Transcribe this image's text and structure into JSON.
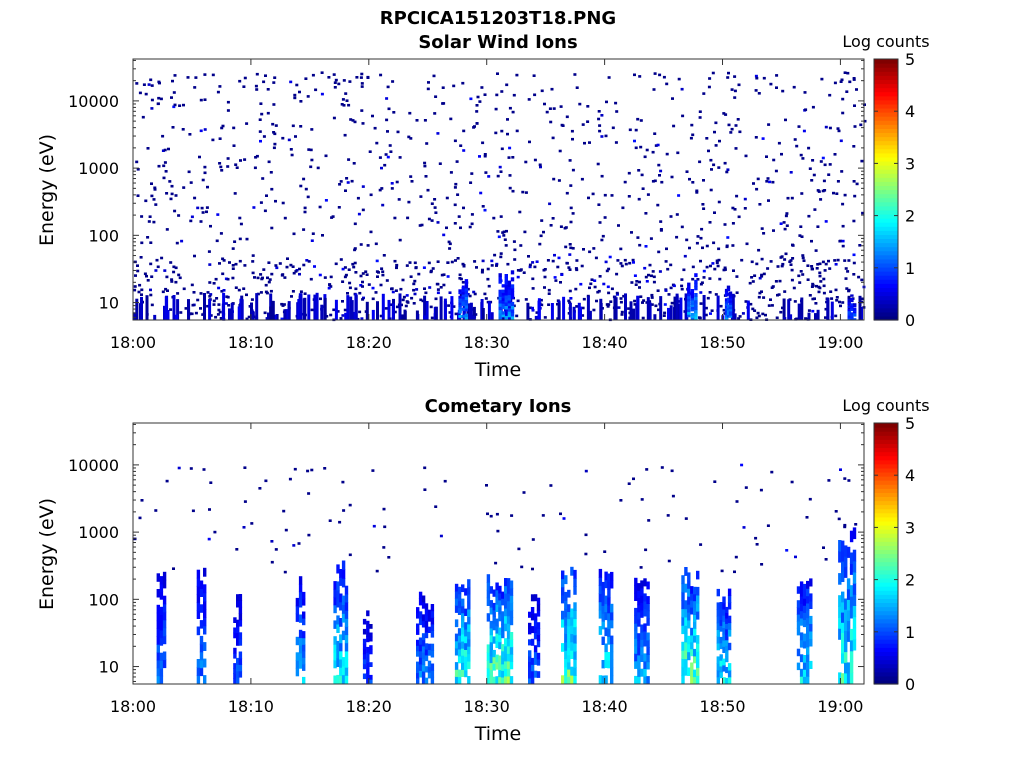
{
  "figure": {
    "title": "RPCICA151203T18.PNG"
  },
  "colorbar": {
    "label": "Log counts",
    "ticks": [
      0,
      1,
      2,
      3,
      4,
      5
    ],
    "colormap": "jet",
    "min": 0,
    "max": 5
  },
  "chart_data": [
    {
      "type": "heatmap",
      "title": "Solar Wind Ions",
      "xlabel": "Time",
      "ylabel": "Energy (eV)",
      "x_ticks": [
        "18:00",
        "18:10",
        "18:20",
        "18:30",
        "18:40",
        "18:50",
        "19:00"
      ],
      "x_tick_minutes": [
        0,
        10,
        20,
        30,
        40,
        50,
        60
      ],
      "xlim_minutes": [
        0,
        62
      ],
      "y_scale": "log",
      "y_ticks": [
        10,
        100,
        1000,
        10000
      ],
      "y_tick_labels": [
        "10",
        "100",
        "1000",
        "10000"
      ],
      "ylim": [
        5.5,
        42000
      ],
      "colorbar_label": "Log counts",
      "clim": [
        0,
        5
      ],
      "background": "#ffffff",
      "description": "sparse single counts (log ~0) spread across all energies 6 eV to 30 keV; bursts below 30 eV near 18:28, 18:31-18:32, 18:47",
      "bursts": [
        {
          "t_start_minutes": 27.6,
          "t_end_minutes": 28.4,
          "e_max_eV": 25,
          "log_max": 1.8
        },
        {
          "t_start_minutes": 31.0,
          "t_end_minutes": 32.3,
          "e_max_eV": 30,
          "log_max": 1.6
        },
        {
          "t_start_minutes": 47.0,
          "t_end_minutes": 47.9,
          "e_max_eV": 30,
          "log_max": 1.8
        },
        {
          "t_start_minutes": 50.2,
          "t_end_minutes": 50.7,
          "e_max_eV": 18,
          "log_max": 1.5
        },
        {
          "t_start_minutes": 60.6,
          "t_end_minutes": 61.3,
          "e_max_eV": 18,
          "log_max": 1.4
        }
      ]
    },
    {
      "type": "heatmap",
      "title": "Cometary Ions",
      "xlabel": "Time",
      "ylabel": "Energy (eV)",
      "x_ticks": [
        "18:00",
        "18:10",
        "18:20",
        "18:30",
        "18:40",
        "18:50",
        "19:00"
      ],
      "x_tick_minutes": [
        0,
        10,
        20,
        30,
        40,
        50,
        60
      ],
      "xlim_minutes": [
        0,
        62
      ],
      "y_scale": "log",
      "y_ticks": [
        10,
        100,
        1000,
        10000
      ],
      "y_tick_labels": [
        "10",
        "100",
        "1000",
        "10000"
      ],
      "ylim": [
        5.5,
        42000
      ],
      "colorbar_label": "Log counts",
      "clim": [
        0,
        5
      ],
      "background": "#ffffff",
      "description": "repeated bursts of ions extending from ~6 eV up to a few hundred eV, sparse counts above 1 keV",
      "bursts": [
        {
          "t_start_minutes": 2.0,
          "t_end_minutes": 2.8,
          "e_max_eV": 300,
          "log_max": 1.5
        },
        {
          "t_start_minutes": 5.4,
          "t_end_minutes": 6.2,
          "e_max_eV": 400,
          "log_max": 1.6
        },
        {
          "t_start_minutes": 8.5,
          "t_end_minutes": 9.2,
          "e_max_eV": 120,
          "log_max": 1.3
        },
        {
          "t_start_minutes": 13.8,
          "t_end_minutes": 14.6,
          "e_max_eV": 250,
          "log_max": 1.8
        },
        {
          "t_start_minutes": 17.0,
          "t_end_minutes": 18.2,
          "e_max_eV": 400,
          "log_max": 2.3
        },
        {
          "t_start_minutes": 19.5,
          "t_end_minutes": 20.3,
          "e_max_eV": 80,
          "log_max": 1.2
        },
        {
          "t_start_minutes": 24.0,
          "t_end_minutes": 25.5,
          "e_max_eV": 150,
          "log_max": 1.6
        },
        {
          "t_start_minutes": 27.3,
          "t_end_minutes": 28.6,
          "e_max_eV": 200,
          "log_max": 2.6
        },
        {
          "t_start_minutes": 30.0,
          "t_end_minutes": 32.2,
          "e_max_eV": 250,
          "log_max": 2.9
        },
        {
          "t_start_minutes": 33.5,
          "t_end_minutes": 34.5,
          "e_max_eV": 150,
          "log_max": 1.4
        },
        {
          "t_start_minutes": 36.3,
          "t_end_minutes": 37.6,
          "e_max_eV": 300,
          "log_max": 2.8
        },
        {
          "t_start_minutes": 39.5,
          "t_end_minutes": 40.7,
          "e_max_eV": 300,
          "log_max": 2.2
        },
        {
          "t_start_minutes": 42.5,
          "t_end_minutes": 43.8,
          "e_max_eV": 300,
          "log_max": 1.8
        },
        {
          "t_start_minutes": 46.5,
          "t_end_minutes": 48.0,
          "e_max_eV": 300,
          "log_max": 2.9
        },
        {
          "t_start_minutes": 49.5,
          "t_end_minutes": 50.7,
          "e_max_eV": 150,
          "log_max": 2.3
        },
        {
          "t_start_minutes": 56.3,
          "t_end_minutes": 57.6,
          "e_max_eV": 250,
          "log_max": 2.2
        },
        {
          "t_start_minutes": 59.8,
          "t_end_minutes": 61.3,
          "e_max_eV": 1200,
          "log_max": 2.5
        }
      ]
    }
  ]
}
